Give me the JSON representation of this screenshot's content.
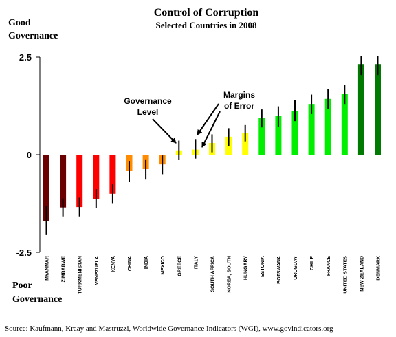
{
  "chart_data": {
    "type": "bar",
    "title": "Control of Corruption",
    "subtitle": "Selected Countries in 2008",
    "top_label": [
      "Good",
      "Governance"
    ],
    "bottom_label": [
      "Poor",
      "Governance"
    ],
    "ylim": [
      -2.5,
      2.5
    ],
    "yticks": [
      {
        "value": 2.5,
        "label": "2.5"
      },
      {
        "value": 0,
        "label": "0"
      },
      {
        "value": -2.5,
        "label": "-2.5"
      }
    ],
    "categories": [
      "MYANMAR",
      "ZIMBABWE",
      "TURKMENISTAN",
      "VENEZUELA",
      "KENYA",
      "CHINA",
      "INDIA",
      "MEXICO",
      "GREECE",
      "ITALY",
      "SOUTH AFRICA",
      "KOREA, SOUTH",
      "HUNGARY",
      "ESTONIA",
      "BOTSWANA",
      "URUGUAY",
      "CHILE",
      "FRANCE",
      "UNITED STATES",
      "NEW ZEALAND",
      "DENMARK"
    ],
    "values": [
      -1.69,
      -1.35,
      -1.34,
      -1.13,
      -1.0,
      -0.42,
      -0.37,
      -0.25,
      0.11,
      0.13,
      0.3,
      0.46,
      0.56,
      0.94,
      0.99,
      1.12,
      1.3,
      1.43,
      1.55,
      2.32,
      2.32
    ],
    "error_low": [
      -2.04,
      -1.58,
      -1.58,
      -1.36,
      -1.24,
      -0.7,
      -0.62,
      -0.5,
      -0.14,
      -0.1,
      0.06,
      0.22,
      0.34,
      0.7,
      0.72,
      0.86,
      1.04,
      1.18,
      1.3,
      2.04,
      2.04
    ],
    "error_high": [
      -1.32,
      -1.12,
      -1.1,
      -0.88,
      -0.76,
      -0.16,
      -0.12,
      -0.02,
      0.36,
      0.4,
      0.52,
      0.68,
      0.76,
      1.16,
      1.24,
      1.4,
      1.54,
      1.68,
      1.78,
      2.52,
      2.52
    ],
    "colors": [
      "#6a0000",
      "#6a0000",
      "#ff0000",
      "#ff0000",
      "#ff0000",
      "#ff8c00",
      "#ff8c00",
      "#ff8c00",
      "#ffff00",
      "#ffff00",
      "#ffff00",
      "#ffff00",
      "#ffff00",
      "#00ee00",
      "#00ee00",
      "#00ee00",
      "#00ee00",
      "#00ee00",
      "#00ee00",
      "#007a00",
      "#007a00"
    ],
    "grid": false,
    "legend": "none",
    "annotations": [
      {
        "text": [
          "Governance",
          "Level"
        ]
      },
      {
        "text": [
          "Margins",
          "of Error"
        ]
      }
    ],
    "source": "Source: Kaufmann, Kraay and Mastruzzi, Worldwide Governance Indicators (WGI), www.govindicators.org"
  }
}
